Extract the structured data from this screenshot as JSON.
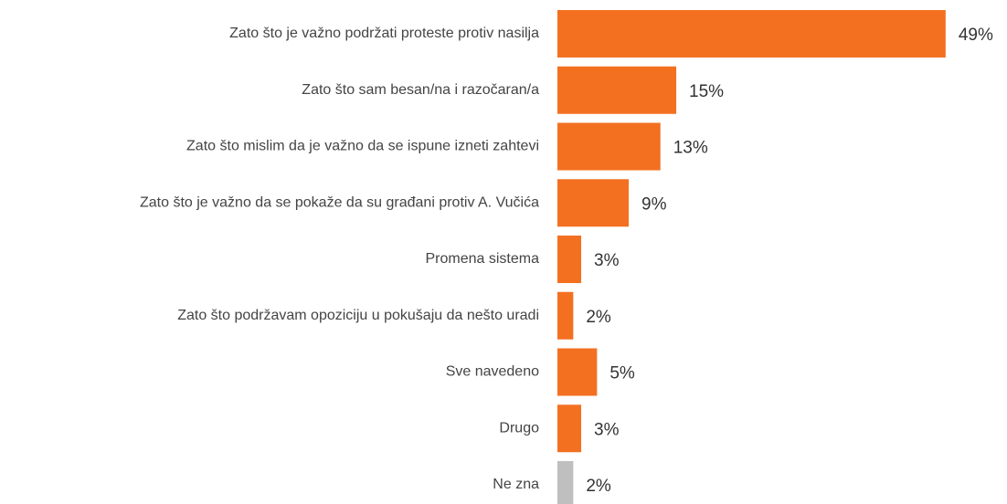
{
  "chart_data": {
    "type": "barh",
    "categories": [
      "Zato što je važno podržati proteste protiv nasilja",
      "Zato što sam besan/na i razočaran/a",
      "Zato što mislim da je važno da se ispune izneti zahtevi",
      "Zato što je važno da se pokaže da su građani protiv A. Vučića",
      "Promena sistema",
      "Zato što podržavam opoziciju u pokušaju da nešto uradi",
      "Sve navedeno",
      "Drugo",
      "Ne zna"
    ],
    "values": [
      49,
      15,
      13,
      9,
      3,
      2,
      5,
      3,
      2
    ],
    "value_labels": [
      "49%",
      "15%",
      "13%",
      "9%",
      "3%",
      "2%",
      "5%",
      "3%",
      "2%"
    ],
    "colors": [
      "#f37021",
      "#f37021",
      "#f37021",
      "#f37021",
      "#f37021",
      "#f37021",
      "#f37021",
      "#f37021",
      "#bfbfbf"
    ]
  }
}
